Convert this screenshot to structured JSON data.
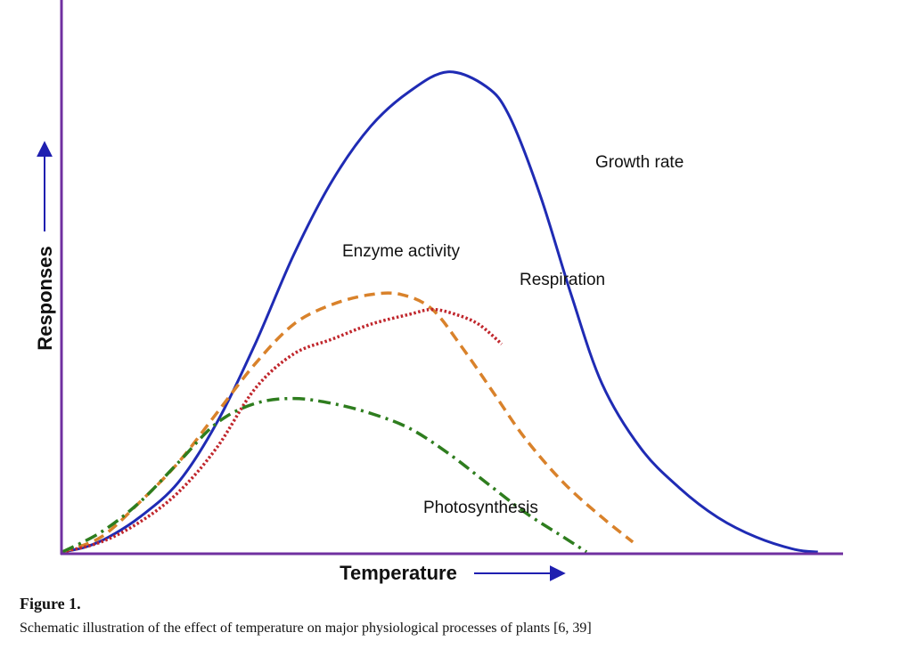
{
  "chart_data": {
    "type": "line",
    "xlabel": "Temperature",
    "ylabel": "Responses",
    "xlim": [
      0,
      100
    ],
    "ylim": [
      0,
      100
    ],
    "grid": false,
    "legend": "none",
    "axis_color": "#7030a0",
    "arrow_color": "#1f1fb0",
    "series": [
      {
        "name": "Growth rate",
        "color": "#1f2bb4",
        "style": "solid",
        "x": [
          0,
          3,
          6,
          10,
          15,
          20,
          25,
          30,
          35,
          40,
          45,
          50,
          55,
          58,
          62,
          66,
          70,
          75,
          80,
          85,
          90,
          95,
          98
        ],
        "y": [
          0,
          1,
          3,
          7,
          14,
          26,
          42,
          60,
          75,
          86,
          93,
          97,
          94,
          88,
          72,
          52,
          34,
          21,
          13,
          7,
          3,
          0.5,
          0
        ]
      },
      {
        "name": "Enzyme activity",
        "color": "#d9822b",
        "style": "dashed",
        "x": [
          0,
          5,
          10,
          15,
          20,
          25,
          30,
          35,
          40,
          44,
          48,
          52,
          56,
          60,
          65,
          70,
          74
        ],
        "y": [
          0,
          3,
          10,
          18,
          28,
          38,
          46,
          50,
          52,
          52,
          49,
          41,
          32,
          23,
          14,
          7,
          2
        ]
      },
      {
        "name": "Respiration",
        "color": "#c0262c",
        "style": "dotted",
        "x": [
          0,
          5,
          10,
          15,
          20,
          25,
          30,
          35,
          40,
          45,
          48,
          51,
          54,
          57
        ],
        "y": [
          0,
          2,
          6,
          12,
          21,
          33,
          40,
          43,
          46,
          48,
          49,
          48,
          46,
          42
        ]
      },
      {
        "name": "Photosynthesis",
        "color": "#2e7d1e",
        "style": "dash-dot",
        "x": [
          0,
          5,
          10,
          15,
          20,
          25,
          30,
          35,
          40,
          45,
          50,
          55,
          60,
          65,
          68
        ],
        "y": [
          0,
          4,
          10,
          18,
          26,
          30,
          31,
          30,
          28,
          25,
          20,
          14,
          8,
          3,
          0
        ]
      }
    ],
    "annotations": [
      {
        "text": "Growth rate",
        "series": "Growth rate"
      },
      {
        "text": "Enzyme activity",
        "series": "Enzyme activity"
      },
      {
        "text": "Respiration",
        "series": "Respiration"
      },
      {
        "text": "Photosynthesis",
        "series": "Photosynthesis"
      }
    ]
  },
  "caption": {
    "title": "Figure 1.",
    "text": "Schematic illustration of the effect of temperature on major physiological processes of plants [6, 39]"
  }
}
